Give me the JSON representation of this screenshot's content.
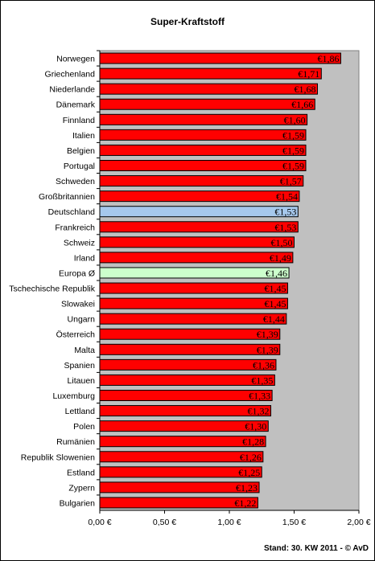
{
  "page": {
    "title": "Super-Kraftstoff",
    "footer": "Stand: 30. KW 2011 - © AvD"
  },
  "chart_data": {
    "type": "bar",
    "orientation": "horizontal",
    "title": "Super-Kraftstoff",
    "xlabel": "",
    "ylabel": "",
    "xlim": [
      0,
      2.0
    ],
    "x_ticks": [
      0,
      0.5,
      1.0,
      1.5,
      2.0
    ],
    "x_tick_labels": [
      "0,00 €",
      "0,50 €",
      "1,00 €",
      "1,50 €",
      "2,00 €"
    ],
    "grid": false,
    "plot_background": "#c0c0c0",
    "colors": {
      "default": "#ff0000",
      "highlight_germany": "#a6c8ec",
      "highlight_europe": "#ccffcc"
    },
    "categories": [
      "Norwegen",
      "Griechenland",
      "Niederlande",
      "Dänemark",
      "Finnland",
      "Italien",
      "Belgien",
      "Portugal",
      "Schweden",
      "Großbritannien",
      "Deutschland",
      "Frankreich",
      "Schweiz",
      "Irland",
      "Europa Ø",
      "Tschechische Republik",
      "Slowakei",
      "Ungarn",
      "Österreich",
      "Malta",
      "Spanien",
      "Litauen",
      "Luxemburg",
      "Lettland",
      "Polen",
      "Rumänien",
      "Republik Slowenien",
      "Estland",
      "Zypern",
      "Bulgarien"
    ],
    "values": [
      1.86,
      1.71,
      1.68,
      1.66,
      1.6,
      1.59,
      1.59,
      1.59,
      1.57,
      1.54,
      1.53,
      1.53,
      1.5,
      1.49,
      1.46,
      1.45,
      1.45,
      1.44,
      1.39,
      1.39,
      1.36,
      1.35,
      1.33,
      1.32,
      1.3,
      1.28,
      1.26,
      1.25,
      1.23,
      1.22
    ],
    "value_labels": [
      "€1,86",
      "€1,71",
      "€1,68",
      "€1,66",
      "€1,60",
      "€1,59",
      "€1,59",
      "€1,59",
      "€1,57",
      "€1,54",
      "€1,53",
      "€1,53",
      "€1,50",
      "€1,49",
      "€1,46",
      "€1,45",
      "€1,45",
      "€1,44",
      "€1,39",
      "€1,39",
      "€1,36",
      "€1,35",
      "€1,33",
      "€1,32",
      "€1,30",
      "€1,28",
      "€1,26",
      "€1,25",
      "€1,23",
      "€1,22"
    ],
    "highlights": {
      "Deutschland": "highlight_germany",
      "Europa Ø": "highlight_europe"
    }
  }
}
